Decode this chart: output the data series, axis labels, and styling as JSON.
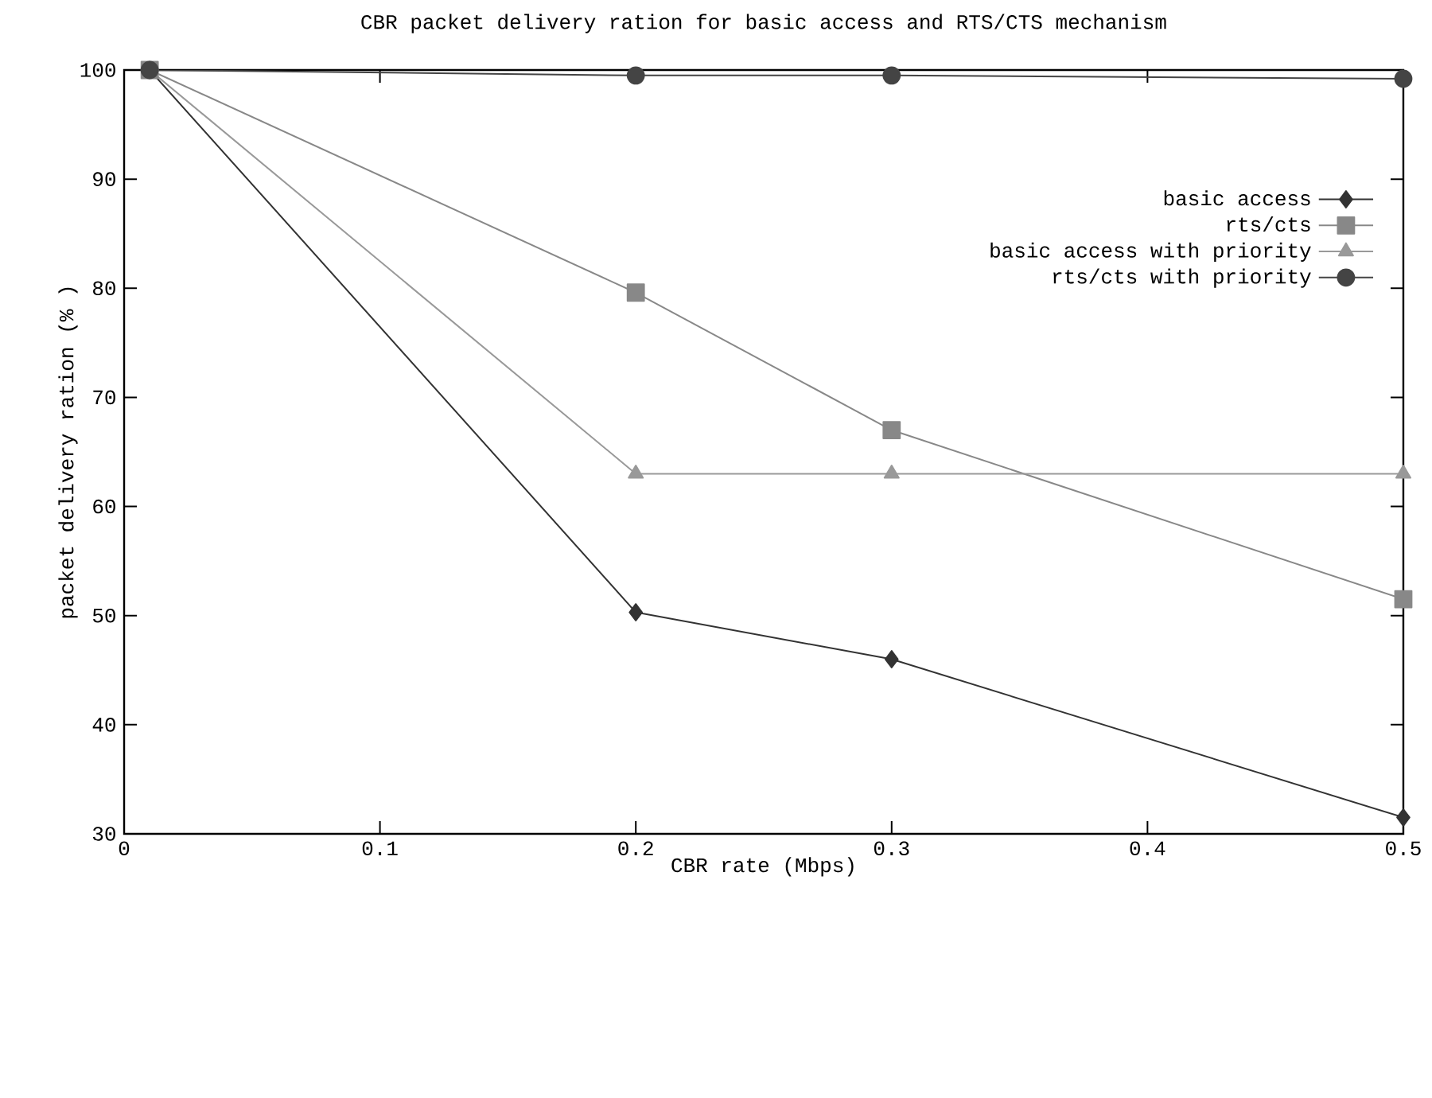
{
  "chart_data": {
    "type": "line",
    "title": "CBR packet delivery ration for basic access and RTS/CTS mechanism",
    "xlabel": "CBR rate (Mbps)",
    "ylabel": "packet delivery ration (% )",
    "x": [
      0.01,
      0.2,
      0.3,
      0.5
    ],
    "series": [
      {
        "name": "basic access",
        "color": "#333333",
        "marker": "diamond",
        "values": [
          100,
          50.3,
          46,
          31.5
        ]
      },
      {
        "name": "rts/cts",
        "color": "#888888",
        "marker": "square",
        "values": [
          100,
          79.6,
          67,
          51.5
        ]
      },
      {
        "name": "basic access with priority",
        "color": "#999999",
        "marker": "triangle",
        "values": [
          100,
          63,
          63,
          63
        ]
      },
      {
        "name": "rts/cts with priority",
        "color": "#444444",
        "marker": "circle",
        "values": [
          100,
          99.5,
          99.5,
          99.2
        ]
      }
    ],
    "xlim": [
      0,
      0.5
    ],
    "xticks": [
      0,
      0.1,
      0.2,
      0.3,
      0.4,
      0.5
    ],
    "ylim": [
      30,
      100
    ],
    "yticks": [
      30,
      40,
      50,
      60,
      70,
      80,
      90,
      100
    ],
    "grid": false,
    "legend": "top right",
    "line_style": "solid"
  }
}
